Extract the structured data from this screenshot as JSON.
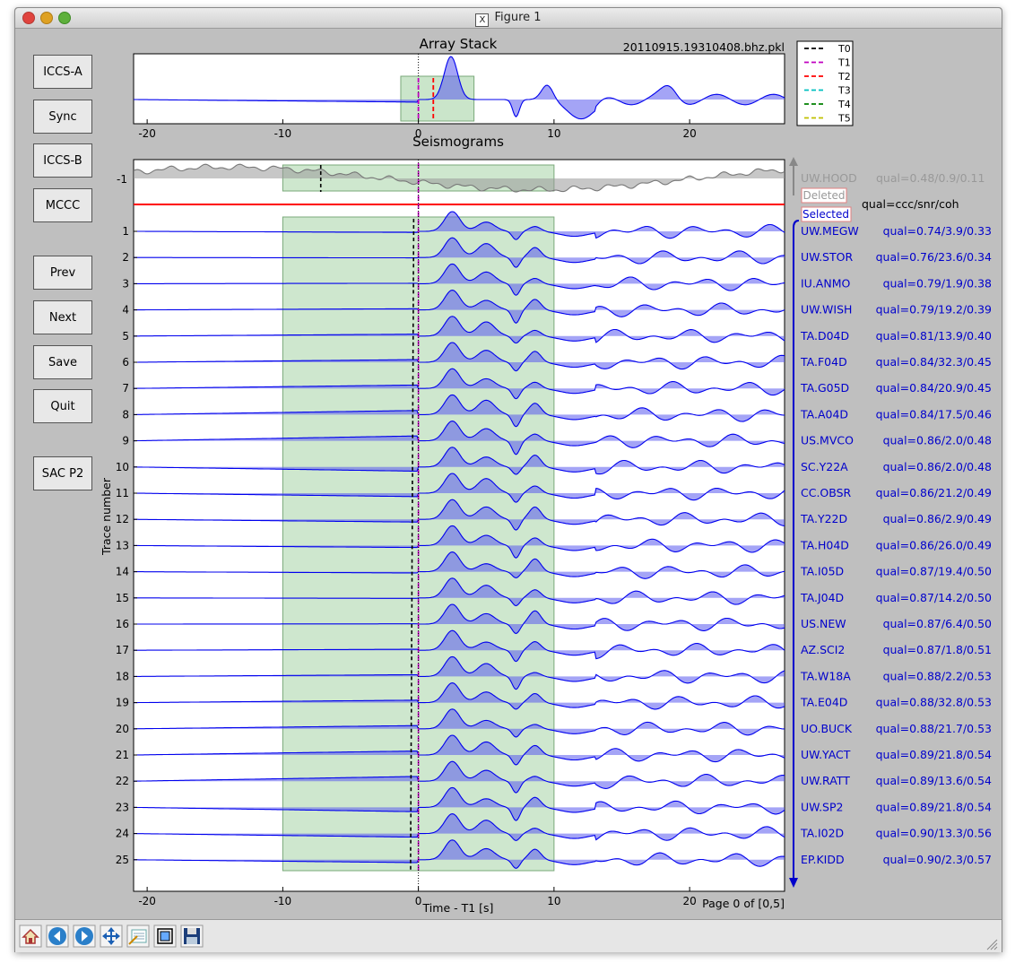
{
  "window": {
    "title": "Figure 1",
    "x11_glyph": "X"
  },
  "buttons": [
    {
      "id": "iccs-a",
      "label": "ICCS-A"
    },
    {
      "id": "sync",
      "label": "Sync"
    },
    {
      "id": "iccs-b",
      "label": "ICCS-B"
    },
    {
      "id": "mccc",
      "label": "MCCC"
    },
    {
      "id": "prev",
      "label": "Prev"
    },
    {
      "id": "next",
      "label": "Next"
    },
    {
      "id": "save",
      "label": "Save"
    },
    {
      "id": "quit",
      "label": "Quit"
    },
    {
      "id": "sac-p2",
      "label": "SAC P2"
    }
  ],
  "stack": {
    "title": "Array Stack",
    "filename": "20110915.19310408.bhz.pkl",
    "legend": [
      {
        "label": "T0",
        "color": "#000000"
      },
      {
        "label": "T1",
        "color": "#c000c0"
      },
      {
        "label": "T2",
        "color": "#ff0000"
      },
      {
        "label": "T3",
        "color": "#00c0c0"
      },
      {
        "label": "T4",
        "color": "#008000"
      },
      {
        "label": "T5",
        "color": "#c0c000"
      }
    ]
  },
  "seis": {
    "title": "Seismograms",
    "xlabel": "Time - T1 [s]",
    "ylabel": "Trace number",
    "page": "Page 0 of [0,5]",
    "deleted_label": "Deleted",
    "selected_label": "Selected",
    "qual_header": "qual=ccc/snr/coh",
    "deleted": [
      {
        "num": "-1",
        "station": "UW.HOOD",
        "qual": "qual=0.48/0.9/0.11"
      }
    ],
    "traces": [
      {
        "num": "1",
        "station": "UW.MEGW",
        "qual": "qual=0.74/3.9/0.33"
      },
      {
        "num": "2",
        "station": "UW.STOR",
        "qual": "qual=0.76/23.6/0.34"
      },
      {
        "num": "3",
        "station": "IU.ANMO",
        "qual": "qual=0.79/1.9/0.38"
      },
      {
        "num": "4",
        "station": "UW.WISH",
        "qual": "qual=0.79/19.2/0.39"
      },
      {
        "num": "5",
        "station": "TA.D04D",
        "qual": "qual=0.81/13.9/0.40"
      },
      {
        "num": "6",
        "station": "TA.F04D",
        "qual": "qual=0.84/32.3/0.45"
      },
      {
        "num": "7",
        "station": "TA.G05D",
        "qual": "qual=0.84/20.9/0.45"
      },
      {
        "num": "8",
        "station": "TA.A04D",
        "qual": "qual=0.84/17.5/0.46"
      },
      {
        "num": "9",
        "station": "US.MVCO",
        "qual": "qual=0.86/2.0/0.48"
      },
      {
        "num": "10",
        "station": "SC.Y22A",
        "qual": "qual=0.86/2.0/0.48"
      },
      {
        "num": "11",
        "station": "CC.OBSR",
        "qual": "qual=0.86/21.2/0.49"
      },
      {
        "num": "12",
        "station": "TA.Y22D",
        "qual": "qual=0.86/2.9/0.49"
      },
      {
        "num": "13",
        "station": "TA.H04D",
        "qual": "qual=0.86/26.0/0.49"
      },
      {
        "num": "14",
        "station": "TA.I05D",
        "qual": "qual=0.87/19.4/0.50"
      },
      {
        "num": "15",
        "station": "TA.J04D",
        "qual": "qual=0.87/14.2/0.50"
      },
      {
        "num": "16",
        "station": "US.NEW",
        "qual": "qual=0.87/6.4/0.50"
      },
      {
        "num": "17",
        "station": "AZ.SCI2",
        "qual": "qual=0.87/1.8/0.51"
      },
      {
        "num": "18",
        "station": "TA.W18A",
        "qual": "qual=0.88/2.2/0.53"
      },
      {
        "num": "19",
        "station": "TA.E04D",
        "qual": "qual=0.88/32.8/0.53"
      },
      {
        "num": "20",
        "station": "UO.BUCK",
        "qual": "qual=0.88/21.7/0.53"
      },
      {
        "num": "21",
        "station": "UW.YACT",
        "qual": "qual=0.89/21.8/0.54"
      },
      {
        "num": "22",
        "station": "UW.RATT",
        "qual": "qual=0.89/13.6/0.54"
      },
      {
        "num": "23",
        "station": "UW.SP2",
        "qual": "qual=0.89/21.8/0.54"
      },
      {
        "num": "24",
        "station": "TA.I02D",
        "qual": "qual=0.90/13.3/0.56"
      },
      {
        "num": "25",
        "station": "EP.KIDD",
        "qual": "qual=0.90/2.3/0.57"
      }
    ]
  },
  "axis_ticks": [
    "-20",
    "-10",
    "0",
    "10",
    "20"
  ],
  "colors": {
    "trace": "#0000ee",
    "fill": "#5a5aee",
    "window": "#a6d4a6",
    "deleted": "#777777",
    "line": "#ff0000"
  },
  "toolbar_icons": [
    "home-icon",
    "back-icon",
    "forward-icon",
    "pan-icon",
    "subplots-icon",
    "zoom-to-rect-icon",
    "save-figure-icon"
  ]
}
